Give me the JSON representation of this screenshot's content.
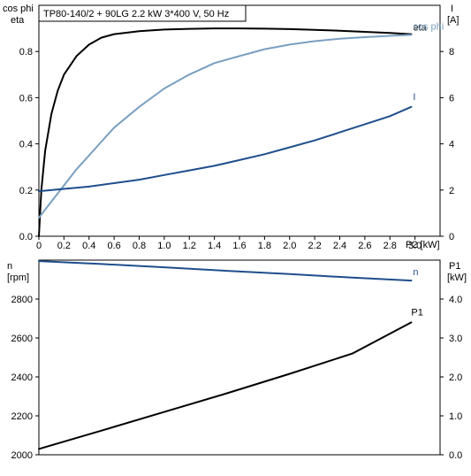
{
  "header": {
    "title": "TP80-140/2 + 90LG   2.2 kW   3*400 V, 50 Hz"
  },
  "chart_data": [
    {
      "type": "line",
      "xlabel": "P2 [kW]",
      "x_ticks": [
        "0",
        "0.2",
        "0.4",
        "0.6",
        "0.8",
        "1.0",
        "1.2",
        "1.4",
        "1.6",
        "1.8",
        "2.0",
        "2.2",
        "2.4",
        "2.6",
        "2.8",
        "3.0"
      ],
      "xlim": [
        0,
        3.2
      ],
      "left_axis": {
        "label_line1": "cos phi",
        "label_line2": "eta",
        "ylim": [
          0,
          1.0
        ],
        "ticks": [
          "0.0",
          "0.2",
          "0.4",
          "0.6",
          "0.8"
        ]
      },
      "right_axis": {
        "label_line1": "I",
        "label_line2": "[A]",
        "ylim": [
          0,
          10
        ],
        "ticks": [
          "0",
          "2",
          "4",
          "6",
          "8"
        ]
      },
      "grid": false,
      "series": [
        {
          "name": "eta",
          "axis": "left",
          "color": "#000000",
          "x": [
            0,
            0.02,
            0.05,
            0.1,
            0.15,
            0.2,
            0.3,
            0.4,
            0.5,
            0.6,
            0.8,
            1.0,
            1.2,
            1.4,
            1.6,
            1.8,
            2.0,
            2.2,
            2.4,
            2.6,
            2.8,
            2.97
          ],
          "y": [
            0,
            0.2,
            0.37,
            0.53,
            0.63,
            0.7,
            0.78,
            0.83,
            0.86,
            0.875,
            0.888,
            0.895,
            0.898,
            0.9,
            0.9,
            0.899,
            0.897,
            0.894,
            0.89,
            0.885,
            0.88,
            0.875
          ]
        },
        {
          "name": "cos phi",
          "axis": "left",
          "color": "#7a9fc0",
          "x": [
            0,
            0.1,
            0.2,
            0.3,
            0.4,
            0.5,
            0.6,
            0.8,
            1.0,
            1.2,
            1.4,
            1.6,
            1.8,
            2.0,
            2.2,
            2.4,
            2.6,
            2.8,
            2.97
          ],
          "y": [
            0.08,
            0.15,
            0.22,
            0.29,
            0.35,
            0.41,
            0.47,
            0.56,
            0.64,
            0.7,
            0.75,
            0.78,
            0.81,
            0.83,
            0.845,
            0.855,
            0.862,
            0.868,
            0.872
          ]
        },
        {
          "name": "I",
          "axis": "right",
          "color": "#1f4e8c",
          "x": [
            0,
            0.2,
            0.4,
            0.6,
            0.8,
            1.0,
            1.2,
            1.4,
            1.6,
            1.8,
            2.0,
            2.2,
            2.4,
            2.6,
            2.8,
            2.97
          ],
          "y": [
            1.95,
            2.05,
            2.15,
            2.3,
            2.45,
            2.65,
            2.85,
            3.05,
            3.3,
            3.55,
            3.85,
            4.15,
            4.5,
            4.85,
            5.2,
            5.6
          ]
        }
      ]
    },
    {
      "type": "line",
      "xlim": [
        0,
        3.2
      ],
      "left_axis": {
        "label_line1": "n",
        "label_line2": "[rpm]",
        "ylim": [
          2000,
          3000
        ],
        "ticks": [
          "2000",
          "2200",
          "2400",
          "2600",
          "2800"
        ]
      },
      "right_axis": {
        "label_line1": "P1",
        "label_line2": "[kW]",
        "ylim": [
          0,
          5.0
        ],
        "ticks": [
          "0.0",
          "1.0",
          "2.0",
          "3.0",
          "4.0"
        ]
      },
      "grid": false,
      "series": [
        {
          "name": "n",
          "axis": "left",
          "color": "#1f4e8c",
          "x": [
            0,
            0.5,
            1.0,
            1.5,
            2.0,
            2.5,
            2.97
          ],
          "y": [
            2995,
            2980,
            2963,
            2945,
            2928,
            2910,
            2895
          ]
        },
        {
          "name": "P1",
          "axis": "right",
          "color": "#000000",
          "x": [
            0,
            0.5,
            1.0,
            1.5,
            2.0,
            2.5,
            2.97
          ],
          "y": [
            0.15,
            0.62,
            1.1,
            1.58,
            2.08,
            2.6,
            3.4
          ]
        }
      ]
    }
  ]
}
